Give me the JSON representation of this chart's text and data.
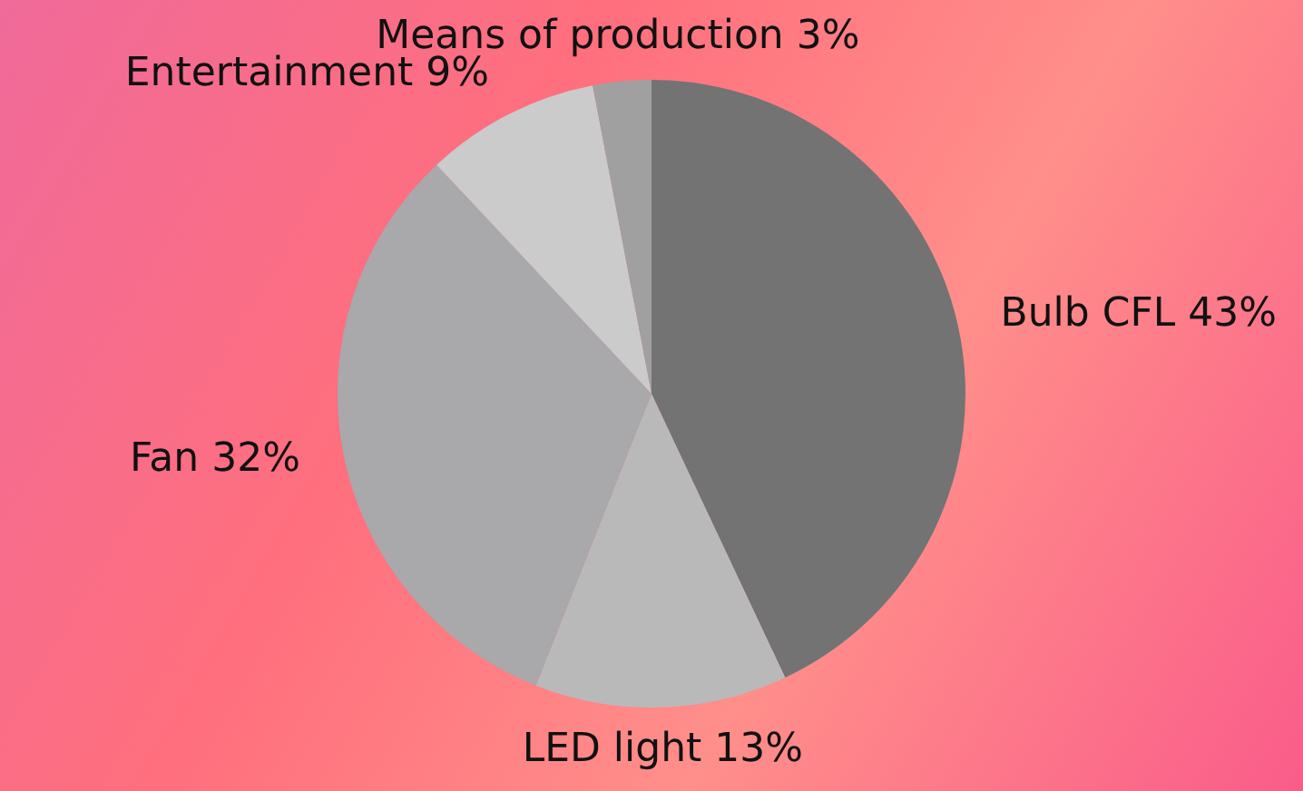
{
  "chart_data": {
    "type": "pie",
    "categories": [
      "Bulb CFL",
      "LED light",
      "Fan",
      "Entertainment",
      "Means of production"
    ],
    "values": [
      43,
      13,
      32,
      9,
      3
    ],
    "value_labels": [
      "43%",
      "13%",
      "32%",
      "9%",
      "3%"
    ],
    "colors": [
      "#737373",
      "#b9b9ba",
      "#a9a8ab",
      "#cbcbcb",
      "#a0a0a0"
    ],
    "legend": false
  }
}
